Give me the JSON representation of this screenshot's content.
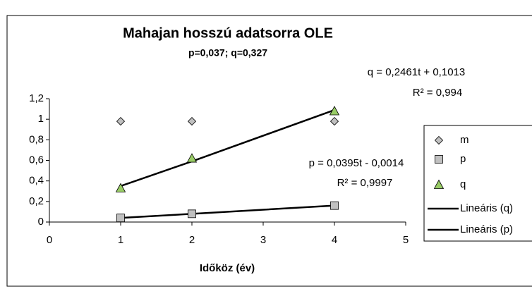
{
  "chart_data": {
    "type": "scatter",
    "title": "Mahajan hosszú adatsorra OLE",
    "subtitle": "p=0,037; q=0,327",
    "x_label": "Időköz (év)",
    "xlim": [
      0,
      5
    ],
    "xticks": [
      0,
      1,
      2,
      3,
      4,
      5
    ],
    "ylim": [
      0,
      1.2
    ],
    "yticks": [
      0,
      {
        "value": 0.2,
        "label": "0,2"
      },
      {
        "value": 0.4,
        "label": "0,4"
      },
      {
        "value": 0.6,
        "label": "0,6"
      },
      {
        "value": 0.8,
        "label": "0,8"
      },
      1,
      {
        "value": 1.2,
        "label": "1,2"
      }
    ],
    "x": [
      1,
      2,
      4
    ],
    "series": [
      {
        "name": "m",
        "marker": "diamond",
        "color": "#c0c0c0",
        "values": [
          0.98,
          0.98,
          0.98
        ]
      },
      {
        "name": "p",
        "marker": "square",
        "color": "#c0c0c0",
        "values": [
          0.04,
          0.08,
          0.16
        ]
      },
      {
        "name": "q",
        "marker": "triangle",
        "color": "#99cc66",
        "values": [
          0.33,
          0.62,
          1.08
        ]
      },
      {
        "name": "Lineáris (q)",
        "marker": "line",
        "color": "#000000",
        "values": [
          0.35,
          0.59,
          1.09
        ]
      },
      {
        "name": "Lineáris (p)",
        "marker": "line",
        "color": "#000000",
        "values": [
          0.04,
          0.08,
          0.16
        ]
      }
    ],
    "annotations": [
      "q = 0,2461t + 0,1013",
      "R² = 0,994",
      "p = 0,0395t - 0,0014",
      "R² = 0,9997"
    ]
  }
}
